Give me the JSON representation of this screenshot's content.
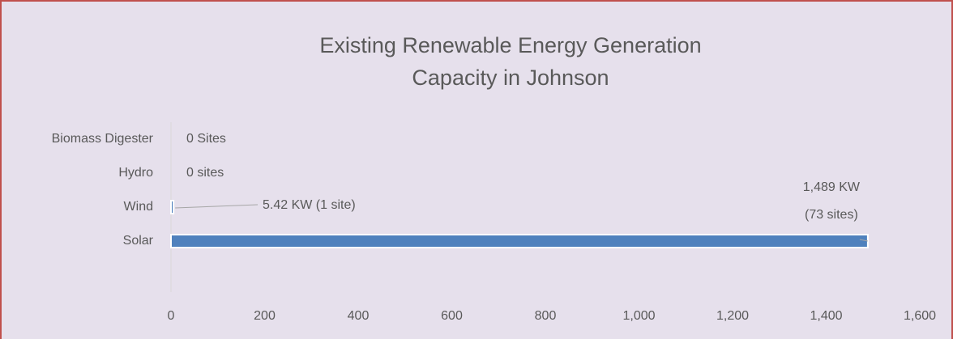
{
  "chart_data": {
    "type": "bar",
    "orientation": "horizontal",
    "title": [
      "Existing Renewable Energy Generation",
      "Capacity in Johnson"
    ],
    "categories": [
      "Biomass Digester",
      "Hydro",
      "Wind",
      "Solar",
      null
    ],
    "values": [
      0,
      0,
      5.42,
      1489,
      null
    ],
    "value_labels": [
      "0 Sites",
      "0 sites",
      "5.42 KW (1 site)",
      [
        "1,489 KW",
        "(73 sites)"
      ],
      null
    ],
    "color": "#4f81bd",
    "xlim": [
      0,
      1600
    ],
    "xticks": [
      0,
      200,
      400,
      600,
      800,
      {
        "value": 1000,
        "label": "1,000"
      },
      {
        "value": 1200,
        "label": "1,200"
      },
      {
        "value": 1400,
        "label": "1,400"
      },
      {
        "value": 1600,
        "label": "1,600"
      }
    ],
    "grid": false
  }
}
